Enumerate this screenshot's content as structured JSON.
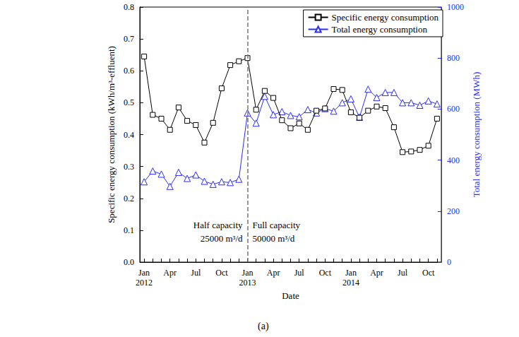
{
  "chart_data": {
    "type": "line",
    "title": "(a)",
    "xlabel": "Date",
    "ylabel": "Specific energy consumption (kWh/m³-effluent)",
    "y2label": "Total energy consumption (MWh)",
    "categories": [
      "Jan\n2012",
      null,
      null,
      "Apr",
      null,
      null,
      "Jul",
      null,
      null,
      "Oct",
      null,
      null,
      "Jan\n2013",
      null,
      null,
      "Apr",
      null,
      null,
      "Jul",
      null,
      null,
      "Oct",
      null,
      null,
      "Jan\n2014",
      null,
      null,
      "Apr",
      null,
      null,
      "Jul",
      null,
      null,
      "Oct",
      null
    ],
    "series": [
      {
        "name": "Specific energy consumption",
        "color": "#000000",
        "marker": "square",
        "values": [
          0.645,
          0.462,
          0.45,
          0.415,
          0.485,
          0.443,
          0.43,
          0.375,
          0.437,
          0.545,
          0.618,
          0.63,
          0.64,
          0.478,
          0.537,
          0.515,
          0.445,
          0.42,
          0.435,
          0.415,
          0.475,
          0.482,
          0.543,
          0.54,
          0.47,
          0.453,
          0.475,
          0.488,
          0.483,
          0.423,
          0.345,
          0.347,
          0.352,
          0.365,
          0.45
        ]
      },
      {
        "name": "Total energy consumption",
        "color": "#2b2bff",
        "marker": "triangle",
        "axis": "y2",
        "values": [
          315,
          357,
          345,
          297,
          352,
          328,
          342,
          317,
          305,
          315,
          312,
          325,
          585,
          545,
          650,
          578,
          590,
          575,
          570,
          598,
          585,
          602,
          592,
          625,
          640,
          568,
          678,
          645,
          665,
          665,
          625,
          625,
          615,
          632,
          620
        ]
      }
    ],
    "ylim": [
      0,
      0.8
    ],
    "yticks": [
      {
        "value": 0,
        "label": "0.0"
      },
      0.1,
      0.2,
      0.3,
      0.4,
      0.5,
      0.6,
      0.7,
      0.8
    ],
    "y2lim": [
      0,
      1000
    ],
    "y2ticks": [
      0,
      200,
      400,
      600,
      800,
      1000
    ],
    "grid": false,
    "legend": "upper right",
    "vline": {
      "x": "Jan\n2013",
      "line_style": "dashed",
      "annotations": [
        {
          "text": "Half capacity\n25000 m³/d",
          "y": 0.096,
          "align": "right"
        },
        {
          "text": "Full capacity\n50000 m³/d",
          "y": 0.096,
          "align": "left"
        }
      ]
    }
  }
}
